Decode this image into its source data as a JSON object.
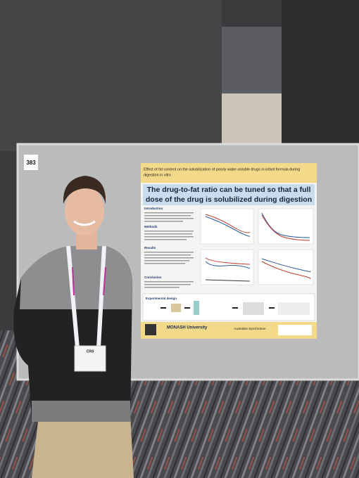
{
  "board_number": "383",
  "poster": {
    "title_lines": [
      "Effect of fat content on the solubilization of poorly water-soluble drugs in infant formula during",
      "digestion in vitro"
    ],
    "headline_lines": [
      "The drug-to-fat ratio can be tuned so that a full",
      "dose of the drug is solubilized during digestion"
    ],
    "sections": [
      "Introduction",
      "Methods",
      "Results",
      "Conclusion",
      "Experimental design"
    ],
    "logos": [
      "MONASH University",
      "Australian Synchrotron"
    ]
  },
  "badge": {
    "label": "CRS"
  }
}
